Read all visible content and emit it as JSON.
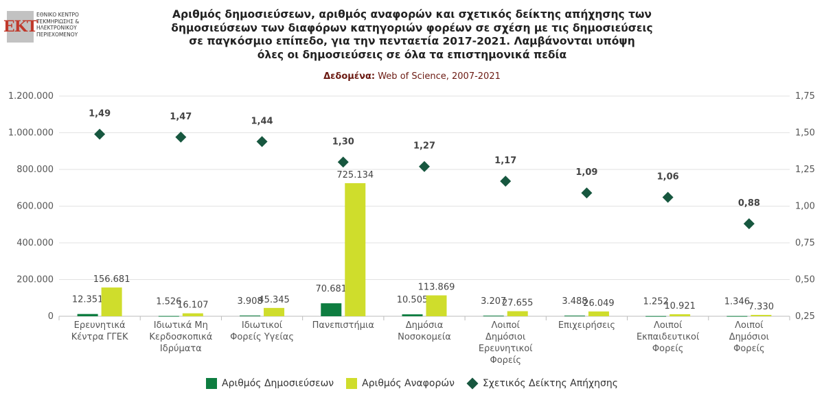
{
  "logo": {
    "mark": "ΕΚΤ",
    "lines": [
      "ΕΘΝΙΚΟ ΚΕΝΤΡΟ",
      "ΤΕΚΜΗΡΙΩΣΗΣ &",
      "ΗΛΕΚΤΡΟΝΙΚΟΥ",
      "ΠΕΡΙΕΧΟΜΕΝΟΥ"
    ]
  },
  "title_lines": [
    "Αριθμός δημοσιεύσεων, αριθμός αναφορών και σχετικός δείκτης απήχησης των",
    "δημοσιεύσεων των διαφόρων κατηγοριών φορέων σε σχέση με τις δημοσιεύσεις",
    "σε παγκόσμιο επίπεδο, για την πενταετία 2017-2021. Λαμβάνονται υπόψη",
    "όλες οι δημοσιεύσεις σε όλα τα επιστημονικά πεδία"
  ],
  "subtitle": {
    "label": "Δεδομένα:",
    "text": "Web of Science, 2007-2021"
  },
  "colors": {
    "publications": "#0e7d40",
    "citations": "#cfdd2c",
    "index": "#17573f"
  },
  "chart_data": {
    "type": "bar",
    "categories": [
      [
        "Ερευνητικά",
        "Κέντρα ΓΓΕΚ"
      ],
      [
        "Ιδιωτικά Μη",
        "Κερδοσκοπικά",
        "Ιδρύματα"
      ],
      [
        "Ιδιωτικοί",
        "Φορείς Υγείας"
      ],
      [
        "Πανεπιστήμια"
      ],
      [
        "Δημόσια",
        "Νοσοκομεία"
      ],
      [
        "Λοιποί",
        "Δημόσιοι",
        "Ερευνητικοί",
        "Φορείς"
      ],
      [
        "Επιχειρήσεις"
      ],
      [
        "Λοιποί",
        "Εκπαιδευτικοί",
        "Φορείς"
      ],
      [
        "Λοιποί",
        "Δημόσιοι",
        "Φορείς"
      ]
    ],
    "series": [
      {
        "name": "Αριθμός Δημοσιεύσεων",
        "axis": "left",
        "values": [
          12351,
          1526,
          3908,
          70681,
          10505,
          3207,
          3488,
          1252,
          1346
        ],
        "labels": [
          "12.351",
          "1.526",
          "3.908",
          "70.681",
          "10.505",
          "3.207",
          "3.488",
          "1.252",
          "1.346"
        ]
      },
      {
        "name": "Αριθμός Αναφορών",
        "axis": "left",
        "values": [
          156681,
          16107,
          45345,
          725134,
          113869,
          27655,
          26049,
          10921,
          7330
        ],
        "labels": [
          "156.681",
          "16.107",
          "45.345",
          "725.134",
          "113.869",
          "27.655",
          "26.049",
          "10.921",
          "7.330"
        ]
      },
      {
        "name": "Σχετικός Δείκτης Απήχησης",
        "axis": "right",
        "type": "scatter",
        "values": [
          1.49,
          1.47,
          1.44,
          1.3,
          1.27,
          1.17,
          1.09,
          1.06,
          0.88
        ],
        "labels": [
          "1,49",
          "1,47",
          "1,44",
          "1,30",
          "1,27",
          "1,17",
          "1,09",
          "1,06",
          "0,88"
        ]
      }
    ],
    "y_left": {
      "range": [
        0,
        1200000
      ],
      "ticks": [
        0,
        200000,
        400000,
        600000,
        800000,
        1000000,
        1200000
      ],
      "tick_labels": [
        "0",
        "200.000",
        "400.000",
        "600.000",
        "800.000",
        "1.000.000",
        "1.200.000"
      ]
    },
    "y_right": {
      "range": [
        0.25,
        1.75
      ],
      "ticks": [
        0.25,
        0.5,
        0.75,
        1.0,
        1.25,
        1.5,
        1.75
      ],
      "tick_labels": [
        "0,25",
        "0,50",
        "0,75",
        "1,00",
        "1,25",
        "1,50",
        "1,75"
      ]
    },
    "grid": true,
    "legend": "bottom"
  }
}
